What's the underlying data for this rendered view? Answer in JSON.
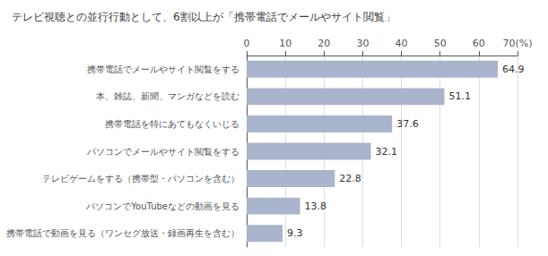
{
  "chart_data": {
    "type": "bar",
    "orientation": "horizontal",
    "title": "テレビ視聴との並行行動として、6割以上が「携帯電話でメールやサイト閲覧」",
    "categories": [
      "携帯電話で動画を見る（ワンセグ放送・録画再生を含む）",
      "パソコンでYouTubeなどの動画を見る",
      "テレビゲームをする（携帯型・パソコンを含む）",
      "パソコンでメールやサイト閲覧をする",
      "携帯電話を特にあてもなくいじる",
      "本、雑誌、新聞、マンガなどを読む",
      "携帯電話でメールやサイト閲覧をする"
    ],
    "values": [
      9.3,
      13.8,
      22.8,
      32.1,
      37.6,
      51.1,
      64.9
    ],
    "color": "#aab4cc",
    "xlim": [
      0,
      70
    ],
    "xticks": [
      0,
      10,
      20,
      30,
      40,
      50,
      60,
      {
        "value": 70,
        "label": "70(%)"
      }
    ],
    "grid": true,
    "data_labels": true
  }
}
